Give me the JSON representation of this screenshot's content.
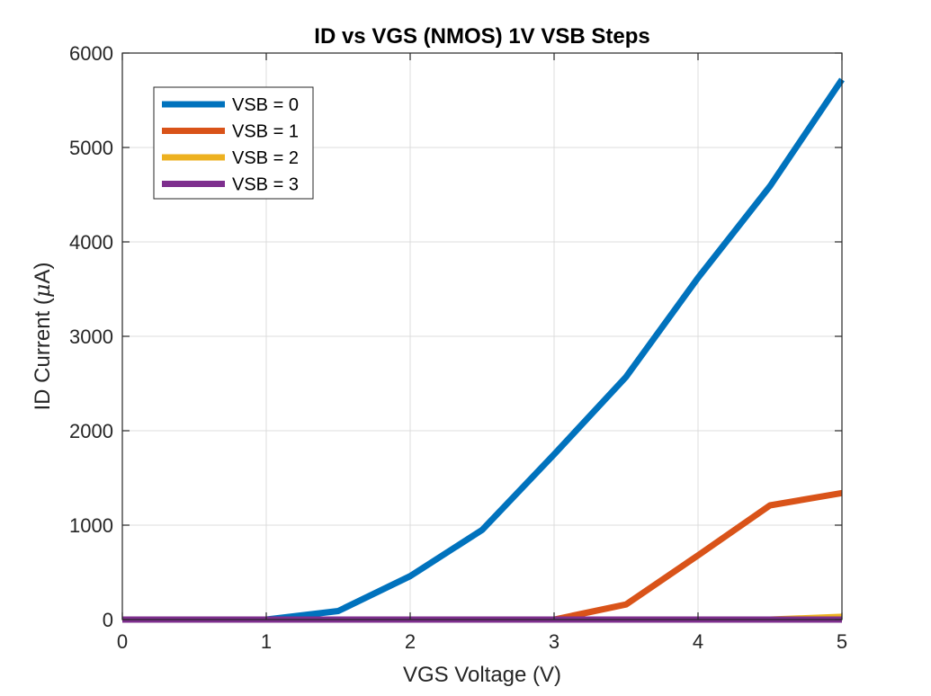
{
  "chart_data": {
    "type": "line",
    "title": "ID vs VGS (NMOS) 1V VSB Steps",
    "xlabel": "VGS Voltage (V)",
    "ylabel_prefix": "ID Current (",
    "ylabel_mu": "μ",
    "ylabel_suffix": "A)",
    "xlim": [
      0,
      5
    ],
    "ylim": [
      0,
      6000
    ],
    "grid": true,
    "legend_position": "top-left",
    "x_ticks": [
      "0",
      "1",
      "2",
      "3",
      "4",
      "5"
    ],
    "y_ticks": [
      "0",
      "1000",
      "2000",
      "3000",
      "4000",
      "5000",
      "6000"
    ],
    "x": [
      0,
      0.5,
      1,
      1.5,
      2,
      2.5,
      3,
      3.5,
      4,
      4.5,
      5
    ],
    "series": [
      {
        "name": "VSB = 0",
        "color": "#0072BD",
        "values": [
          0,
          0,
          0,
          90,
          460,
          950,
          1750,
          2570,
          3620,
          4590,
          5720
        ]
      },
      {
        "name": "VSB = 1",
        "color": "#D95319",
        "values": [
          0,
          0,
          0,
          0,
          0,
          0,
          0,
          160,
          680,
          1210,
          1340
        ]
      },
      {
        "name": "VSB = 2",
        "color": "#EDB120",
        "values": [
          0,
          0,
          0,
          0,
          0,
          0,
          0,
          0,
          0,
          0,
          30
        ]
      },
      {
        "name": "VSB = 3",
        "color": "#7E2F8E",
        "values": [
          0,
          0,
          0,
          0,
          0,
          0,
          0,
          0,
          0,
          0,
          0
        ]
      }
    ]
  }
}
